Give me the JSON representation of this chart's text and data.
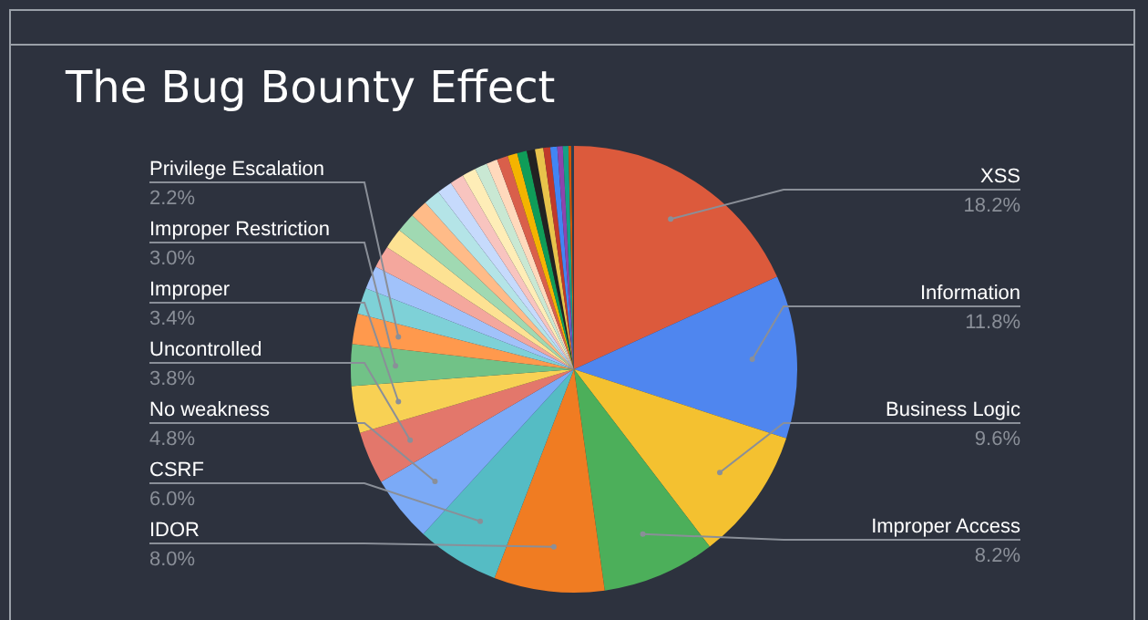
{
  "chart_data": {
    "type": "pie",
    "title": "The Bug Bounty Effect",
    "categories": [
      "XSS",
      "Information",
      "Business Logic",
      "Improper Access",
      "IDOR",
      "CSRF",
      "No weakness",
      "Uncontrolled",
      "Improper",
      "Improper Restriction",
      "Privilege Escalation",
      null,
      null,
      null,
      null,
      null,
      null,
      null,
      null,
      null,
      null,
      null,
      null,
      null,
      null,
      null,
      null,
      null,
      null,
      null,
      null,
      null,
      null,
      null
    ],
    "values": [
      18.2,
      11.8,
      9.6,
      8.2,
      8.0,
      6.0,
      4.8,
      3.8,
      3.4,
      3.0,
      2.2,
      1.9,
      1.7,
      1.6,
      1.5,
      1.4,
      1.3,
      1.2,
      1.1,
      1.0,
      1.0,
      0.9,
      0.8,
      0.8,
      0.7,
      0.7,
      0.6,
      0.6,
      0.5,
      0.5,
      0.4,
      0.4,
      0.2,
      0.2
    ],
    "value_labels": [
      "18.2%",
      "11.8%",
      "9.6%",
      "8.2%",
      "8.0%",
      "6.0%",
      "4.8%",
      "3.8%",
      "3.4%",
      "3.0%",
      "2.2%",
      null,
      null,
      null,
      null,
      null,
      null,
      null,
      null,
      null,
      null,
      null,
      null,
      null,
      null,
      null,
      null,
      null,
      null,
      null,
      null,
      null,
      null,
      null
    ],
    "colors": [
      "#dc5a3c",
      "#4f86ef",
      "#f4c130",
      "#4caf5a",
      "#f07c22",
      "#55bcc4",
      "#7baaf7",
      "#e3776b",
      "#f8d154",
      "#71c287",
      "#ff994d",
      "#7ed1d7",
      "#a1c2fa",
      "#f4a79d",
      "#fde293",
      "#a0d9b2",
      "#ffbb88",
      "#b4e4e7",
      "#c6dafc",
      "#f8c4bf",
      "#feedb7",
      "#c9e8d3",
      "#ffd9bc",
      "#d95f4b",
      "#f4b400",
      "#0f9d58",
      "#222222",
      "#e8c34b",
      "#c0392b",
      "#4285f4",
      "#8e44ad",
      "#16a085",
      "#d35400",
      "#2c3e50"
    ],
    "legend": false
  }
}
